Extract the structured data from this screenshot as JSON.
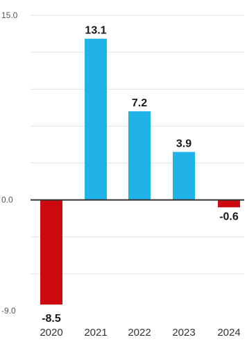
{
  "chart_data": {
    "type": "bar",
    "title": "",
    "xlabel": "",
    "ylabel": "",
    "categories": [
      "2020",
      "2021",
      "2022",
      "2023",
      "2024"
    ],
    "values": [
      -8.5,
      13.1,
      7.2,
      3.9,
      -0.6
    ],
    "value_labels": [
      "-8.5",
      "13.1",
      "7.2",
      "3.9",
      "-0.6"
    ],
    "ylim": [
      -9.0,
      15.0
    ],
    "y_ticks": [
      {
        "value": 15.0,
        "label": "15.0"
      },
      {
        "value": 0.0,
        "label": "0.0"
      },
      {
        "value": -9.0,
        "label": "-9.0"
      }
    ],
    "gridlines": [
      -6.0,
      -3.0,
      3.0,
      6.0,
      9.0,
      12.0,
      15.0
    ],
    "grid": true,
    "legend": "none",
    "colors": {
      "positive": "#1fb3e8",
      "negative": "#cc0a10",
      "grid": "#e2e2e2",
      "zero_line": "#333333"
    }
  }
}
